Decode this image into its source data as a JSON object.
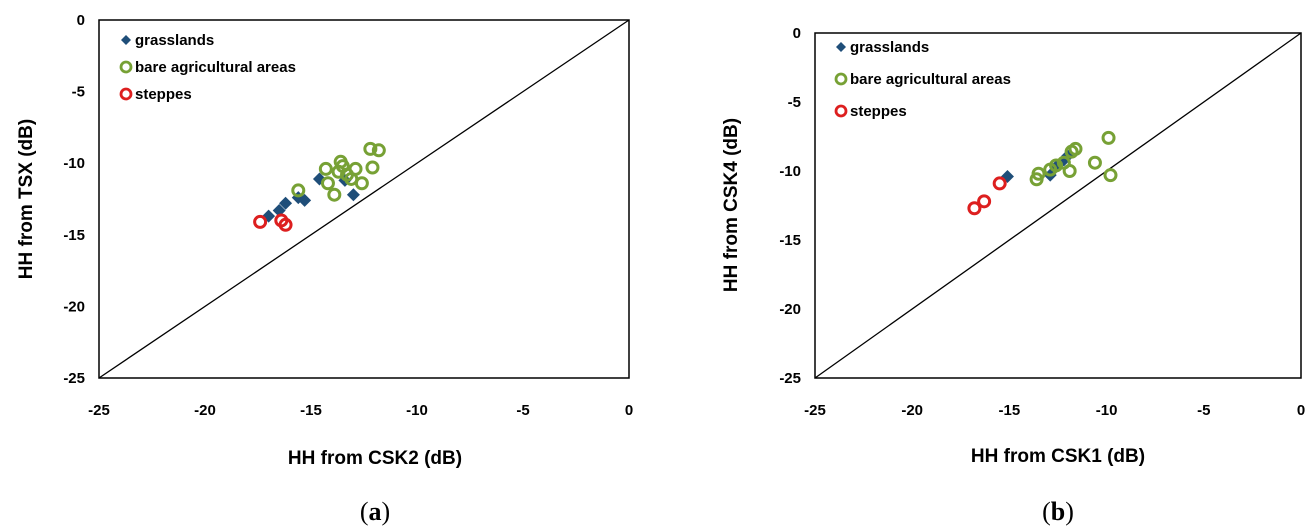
{
  "chart_data": [
    {
      "type": "scatter",
      "panel_label": "a",
      "xlabel": "HH from CSK2 (dB)",
      "ylabel": "HH from TSX (dB)",
      "xlim": [
        -25,
        0
      ],
      "ylim": [
        -25,
        0
      ],
      "xticks": [
        -25,
        -20,
        -15,
        -10,
        -5,
        0
      ],
      "yticks": [
        0,
        -5,
        -10,
        -15,
        -20,
        -25
      ],
      "grid": false,
      "legend_position": "top-left",
      "reference_line": "1:1",
      "series": [
        {
          "name": "grasslands",
          "marker": "diamond",
          "color": "#1f4e79",
          "points": [
            [
              -17.0,
              -13.7
            ],
            [
              -16.5,
              -13.3
            ],
            [
              -16.2,
              -12.8
            ],
            [
              -15.6,
              -12.4
            ],
            [
              -15.3,
              -12.6
            ],
            [
              -14.6,
              -11.1
            ],
            [
              -13.4,
              -11.2
            ],
            [
              -13.0,
              -12.2
            ]
          ]
        },
        {
          "name": "bare agricultural areas",
          "marker": "open-circle",
          "color": "#77a135",
          "points": [
            [
              -15.6,
              -11.9
            ],
            [
              -14.3,
              -10.4
            ],
            [
              -14.2,
              -11.4
            ],
            [
              -13.9,
              -12.2
            ],
            [
              -13.7,
              -10.6
            ],
            [
              -13.6,
              -9.9
            ],
            [
              -13.5,
              -10.2
            ],
            [
              -13.3,
              -10.8
            ],
            [
              -13.1,
              -11.1
            ],
            [
              -12.9,
              -10.4
            ],
            [
              -12.6,
              -11.4
            ],
            [
              -12.2,
              -9.0
            ],
            [
              -12.1,
              -10.3
            ],
            [
              -11.8,
              -9.1
            ]
          ]
        },
        {
          "name": "steppes",
          "marker": "open-circle",
          "color": "#dd1f1f",
          "points": [
            [
              -17.4,
              -14.1
            ],
            [
              -16.4,
              -14.0
            ],
            [
              -16.2,
              -14.3
            ]
          ]
        }
      ]
    },
    {
      "type": "scatter",
      "panel_label": "b",
      "xlabel": "HH from CSK1 (dB)",
      "ylabel": "HH from CSK4 (dB)",
      "xlim": [
        -25,
        0
      ],
      "ylim": [
        -25,
        0
      ],
      "xticks": [
        -25,
        -20,
        -15,
        -10,
        -5,
        0
      ],
      "yticks": [
        0,
        -5,
        -10,
        -15,
        -20,
        -25
      ],
      "grid": false,
      "legend_position": "top-left",
      "reference_line": "1:1",
      "series": [
        {
          "name": "grasslands",
          "marker": "diamond",
          "color": "#1f4e79",
          "points": [
            [
              -15.1,
              -10.4
            ],
            [
              -12.9,
              -10.3
            ],
            [
              -12.6,
              -9.7
            ],
            [
              -12.2,
              -9.2
            ],
            [
              -12.0,
              -8.9
            ]
          ]
        },
        {
          "name": "bare agricultural areas",
          "marker": "open-circle",
          "color": "#77a135",
          "points": [
            [
              -13.6,
              -10.6
            ],
            [
              -13.5,
              -10.2
            ],
            [
              -12.9,
              -9.9
            ],
            [
              -12.6,
              -9.6
            ],
            [
              -12.2,
              -9.4
            ],
            [
              -11.9,
              -10.0
            ],
            [
              -11.8,
              -8.6
            ],
            [
              -11.6,
              -8.4
            ],
            [
              -10.6,
              -9.4
            ],
            [
              -9.9,
              -7.6
            ],
            [
              -9.8,
              -10.3
            ]
          ]
        },
        {
          "name": "steppes",
          "marker": "open-circle",
          "color": "#dd1f1f",
          "points": [
            [
              -16.8,
              -12.7
            ],
            [
              -16.3,
              -12.2
            ],
            [
              -15.5,
              -10.9
            ]
          ]
        }
      ]
    }
  ]
}
